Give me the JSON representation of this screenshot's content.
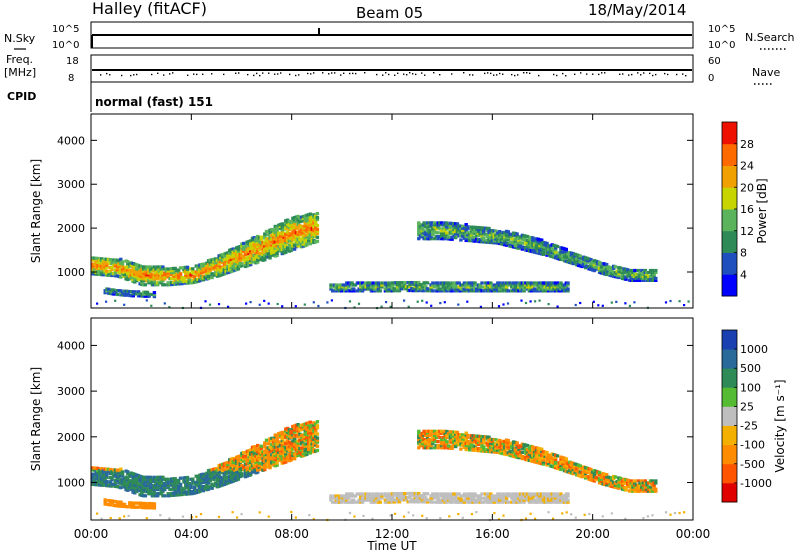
{
  "header": {
    "station": "Halley (fitACF)",
    "beam": "Beam 05",
    "date": "18/May/2014"
  },
  "noise_panel": {
    "left_label": "N.Sky",
    "right_label": "N.Search",
    "left_ticks": [
      "10^5",
      "10^0"
    ],
    "right_ticks": [
      "10^5",
      "10^0"
    ]
  },
  "freq_panel": {
    "left_label": "Freq.",
    "left_unit": "[MHz]",
    "left_ticks": [
      "18",
      "8"
    ],
    "right_label": "Nave",
    "right_ticks": [
      "60",
      "0"
    ]
  },
  "cpid": {
    "label": "CPID",
    "value": "normal (fast) 151"
  },
  "colors": {
    "power": [
      "#0000ff",
      "#1f4fbf",
      "#2e8b57",
      "#5bb35b",
      "#c8d400",
      "#f0a000",
      "#ff6a00",
      "#ee1100"
    ],
    "velocity": [
      "#1a3fb0",
      "#2a6a9a",
      "#2e8b57",
      "#55bb33",
      "#bebebe",
      "#f4b000",
      "#ff8c00",
      "#ff5500",
      "#e00000"
    ]
  },
  "chart_data": [
    {
      "type": "heatmap",
      "title": "",
      "xlabel": "",
      "ylabel": "Slant Range [km]",
      "x_ticks": [
        "00:00",
        "04:00",
        "08:00",
        "12:00",
        "16:00",
        "20:00",
        "00:00"
      ],
      "xlim_hours": [
        0,
        24
      ],
      "y_ticks": [
        1000,
        2000,
        3000,
        4000
      ],
      "ylim_km": [
        180,
        4600
      ],
      "colorbar": {
        "label": "Power [dB]",
        "tick_labels": [
          "4",
          "8",
          "12",
          "16",
          "20",
          "24",
          "28"
        ],
        "range": [
          0,
          32
        ]
      },
      "echo_regions": [
        {
          "start_h": 0.0,
          "end_h": 9.0,
          "low_km": [
            950,
            900,
            700,
            700,
            750,
            900,
            1100,
            1300,
            1500,
            1700
          ],
          "high_km": [
            1350,
            1300,
            1150,
            1100,
            1100,
            1350,
            1650,
            1950,
            2250,
            2350
          ],
          "level": 0.55
        },
        {
          "start_h": 9.5,
          "end_h": 19.0,
          "low_km": [
            560,
            560,
            560,
            570,
            560,
            560,
            560,
            560,
            560,
            560
          ],
          "high_km": [
            720,
            760,
            760,
            780,
            780,
            780,
            760,
            760,
            750,
            740
          ],
          "level": 0.3
        },
        {
          "start_h": 13.0,
          "end_h": 22.5,
          "low_km": [
            1750,
            1750,
            1700,
            1650,
            1500,
            1350,
            1150,
            950,
            800,
            800
          ],
          "high_km": [
            2150,
            2150,
            2050,
            1950,
            1850,
            1650,
            1400,
            1200,
            1050,
            1050
          ],
          "level": 0.3
        },
        {
          "start_h": 0.5,
          "end_h": 2.5,
          "low_km": [
            520,
            500,
            480,
            470,
            460,
            450,
            450,
            440,
            440,
            430
          ],
          "high_km": [
            640,
            620,
            600,
            580,
            570,
            560,
            560,
            550,
            550,
            540
          ],
          "level": 0.25
        }
      ]
    },
    {
      "type": "heatmap",
      "title": "",
      "xlabel": "Time UT",
      "ylabel": "Slant Range [km]",
      "x_ticks": [
        "00:00",
        "04:00",
        "08:00",
        "12:00",
        "16:00",
        "20:00",
        "00:00"
      ],
      "xlim_hours": [
        0,
        24
      ],
      "y_ticks": [
        1000,
        2000,
        3000,
        4000
      ],
      "ylim_km": [
        180,
        4600
      ],
      "colorbar": {
        "label": "Velocity [m s⁻¹]",
        "tick_labels": [
          "1000",
          "500",
          "100",
          "25",
          "-25",
          "-100",
          "-500",
          "-1000"
        ],
        "range": [
          -1000,
          1000
        ]
      },
      "echo_regions": [
        {
          "start_h": 0.0,
          "end_h": 9.0,
          "low_km": [
            950,
            900,
            700,
            700,
            750,
            900,
            1100,
            1300,
            1500,
            1700
          ],
          "high_km": [
            1350,
            1300,
            1150,
            1100,
            1100,
            1350,
            1650,
            1950,
            2250,
            2350
          ],
          "level": 0.55
        },
        {
          "start_h": 9.5,
          "end_h": 19.0,
          "low_km": [
            560,
            560,
            560,
            570,
            560,
            560,
            560,
            560,
            560,
            560
          ],
          "high_km": [
            720,
            760,
            760,
            780,
            780,
            780,
            760,
            760,
            750,
            740
          ],
          "level": 0.3
        },
        {
          "start_h": 13.0,
          "end_h": 22.5,
          "low_km": [
            1750,
            1750,
            1700,
            1650,
            1500,
            1350,
            1150,
            950,
            800,
            800
          ],
          "high_km": [
            2150,
            2150,
            2050,
            1950,
            1850,
            1650,
            1400,
            1200,
            1050,
            1050
          ],
          "level": 0.3
        },
        {
          "start_h": 0.5,
          "end_h": 2.5,
          "low_km": [
            520,
            500,
            480,
            470,
            460,
            450,
            450,
            440,
            440,
            430
          ],
          "high_km": [
            640,
            620,
            600,
            580,
            570,
            560,
            560,
            550,
            550,
            540
          ],
          "level": 0.25
        }
      ]
    }
  ]
}
